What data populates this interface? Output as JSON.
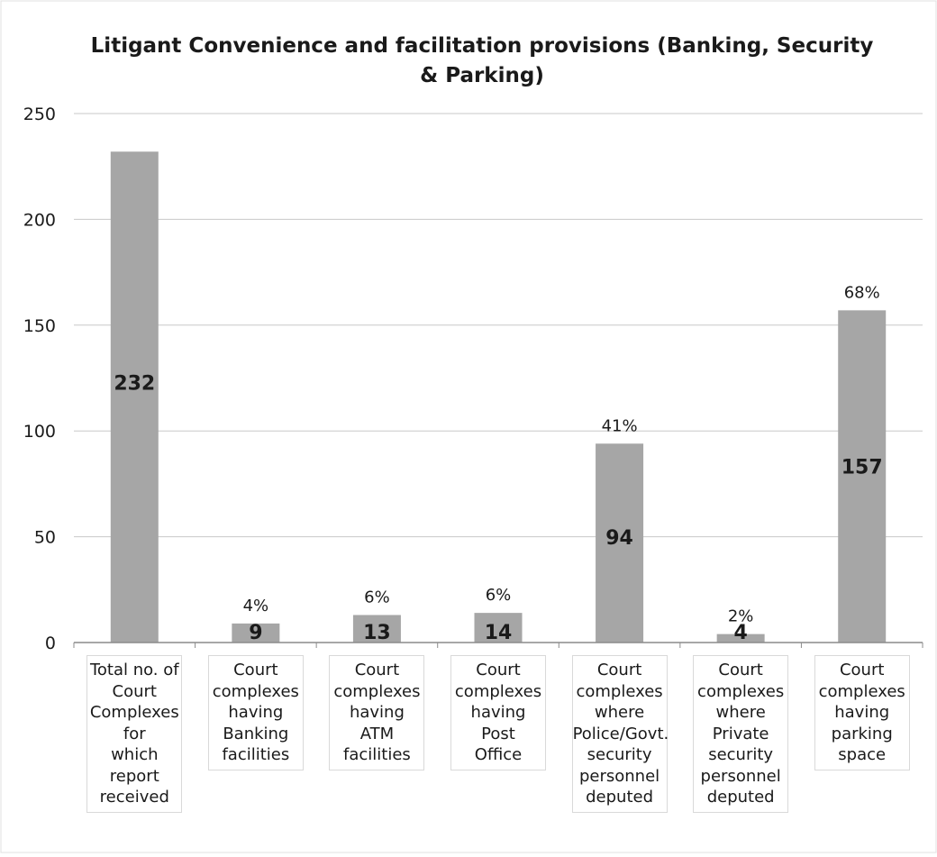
{
  "chart_data": {
    "type": "bar",
    "title": "Litigant Convenience and facilitation provisions (Banking, Security & Parking)",
    "title_lines": [
      "Litigant Convenience and facilitation provisions (Banking, Security",
      "& Parking)"
    ],
    "categories": [
      "Total no. of Court Complexes for which report received",
      "Court complexes having Banking facilities",
      "Court complexes having ATM facilities",
      "Court complexes having Post Office",
      "Court complexes where Police/Govt. security personnel deputed",
      "Court complexes where Private security personnel deputed",
      "Court complexes having parking space"
    ],
    "category_lines": [
      [
        "Total no. of",
        "Court",
        "Complexes",
        "for",
        "which report",
        "received"
      ],
      [
        "Court",
        "complexes",
        "having",
        "Banking",
        "facilities"
      ],
      [
        "Court",
        "complexes",
        "having",
        "ATM",
        "facilities"
      ],
      [
        "Court",
        "complexes",
        "having Post",
        "Office"
      ],
      [
        "Court",
        "complexes",
        "where",
        "Police/Govt.",
        "security",
        "personnel",
        "deputed"
      ],
      [
        "Court",
        "complexes",
        "where",
        "Private",
        "security",
        "personnel",
        "deputed"
      ],
      [
        "Court",
        "complexes",
        "having",
        "parking",
        "space"
      ]
    ],
    "values": [
      232,
      9,
      13,
      14,
      94,
      4,
      157
    ],
    "value_labels": [
      "232",
      "9",
      "13",
      "14",
      "94",
      "4",
      "157"
    ],
    "percent_labels": [
      "",
      "4%",
      "6%",
      "6%",
      "41%",
      "2%",
      "68%"
    ],
    "ylim": [
      0,
      250
    ],
    "yticks": [
      0,
      50,
      100,
      150,
      200,
      250
    ],
    "ytick_labels": [
      "0",
      "50",
      "100",
      "150",
      "200",
      "250"
    ],
    "grid": true,
    "legend": "none",
    "bar_color": "#a6a6a6",
    "grid_color": "#c8c8c8"
  }
}
